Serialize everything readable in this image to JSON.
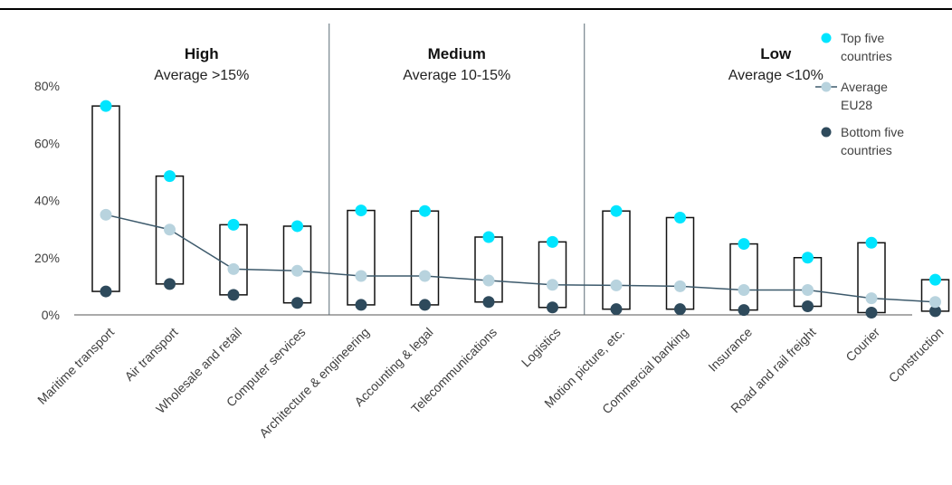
{
  "chart_data": {
    "type": "range-dot",
    "y_tick_labels": [
      "0%",
      "20%",
      "40%",
      "60%",
      "80%"
    ],
    "ylim": [
      0,
      80
    ],
    "categories": [
      "Maritime transport",
      "Air transport",
      "Wholesale and retail",
      "Computer services",
      "Architecture & engineering",
      "Accounting & legal",
      "Telecommunications",
      "Logistics",
      "Motion picture, etc.",
      "Commercial banking",
      "Insurance",
      "Road and rail freight",
      "Courier",
      "Construction"
    ],
    "groups": [
      {
        "title": "High",
        "subtitle": "Average >15%",
        "start": 0,
        "end": 3
      },
      {
        "title": "Medium",
        "subtitle": "Average 10-15%",
        "start": 4,
        "end": 7
      },
      {
        "title": "Low",
        "subtitle": "Average <10%",
        "start": 8,
        "end": 13
      }
    ],
    "series": [
      {
        "name": "Top five countries",
        "color": "#00e5ff",
        "marker": "dot",
        "values": [
          73,
          48.5,
          31.5,
          31,
          36.5,
          36.3,
          27.2,
          25.5,
          36.3,
          34,
          24.8,
          20,
          25.2,
          12.3
        ]
      },
      {
        "name": "Average EU28",
        "color": "#b8d3de",
        "line_color": "#3d5a6c",
        "marker": "dot-line",
        "values": [
          35,
          29.8,
          16,
          15.4,
          13.6,
          13.6,
          12,
          10.5,
          10.3,
          10,
          8.7,
          8.7,
          5.8,
          4.5
        ]
      },
      {
        "name": "Bottom five countries",
        "color": "#2e4a5c",
        "marker": "dot",
        "values": [
          8.2,
          10.8,
          7,
          4.2,
          3.5,
          3.5,
          4.5,
          2.6,
          2,
          2,
          1.7,
          3,
          0.8,
          1.3
        ]
      }
    ],
    "legend_labels": [
      [
        "Top five",
        "countries"
      ],
      [
        "Average",
        "EU28"
      ],
      [
        "Bottom five",
        "countries"
      ]
    ],
    "legend_position": "top-right",
    "grid": false
  }
}
